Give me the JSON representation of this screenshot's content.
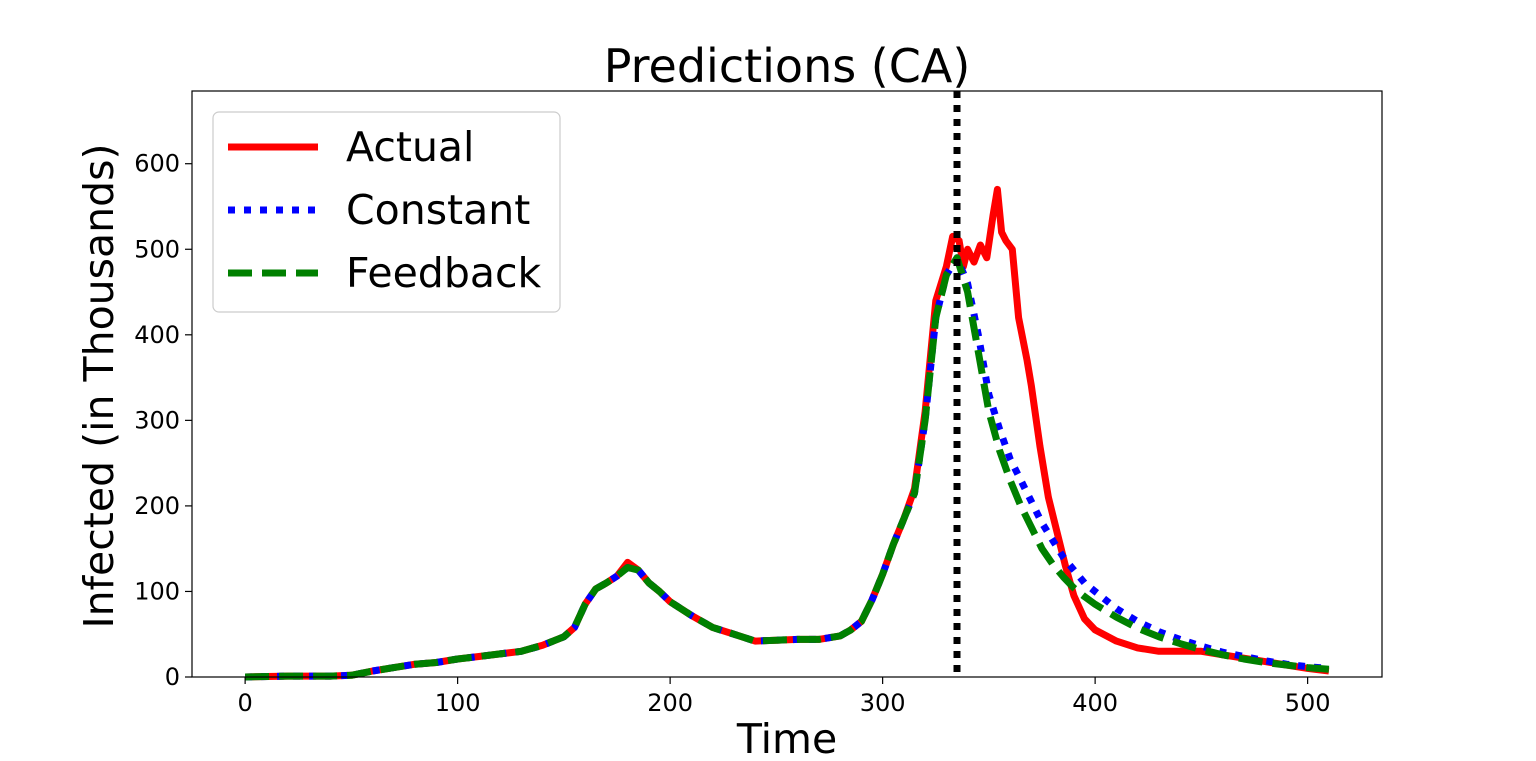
{
  "chart_data": {
    "type": "line",
    "title": "Predictions (CA)",
    "xlabel": "Time",
    "ylabel": "Infected (in Thousands)",
    "xlim": [
      -25,
      535
    ],
    "ylim": [
      0,
      685
    ],
    "xticks": [
      0,
      100,
      200,
      300,
      400,
      500
    ],
    "yticks": [
      0,
      100,
      200,
      300,
      400,
      500,
      600
    ],
    "grid": false,
    "legend_position": "top-left",
    "vline": {
      "x": 335,
      "color": "#000000",
      "style": "dotted"
    },
    "series": [
      {
        "name": "Actual",
        "color": "#ff0000",
        "style": "solid",
        "points": [
          [
            0,
            0
          ],
          [
            20,
            1
          ],
          [
            40,
            1
          ],
          [
            50,
            2
          ],
          [
            60,
            7
          ],
          [
            70,
            11
          ],
          [
            80,
            15
          ],
          [
            90,
            17
          ],
          [
            100,
            21
          ],
          [
            110,
            24
          ],
          [
            120,
            27
          ],
          [
            130,
            30
          ],
          [
            140,
            37
          ],
          [
            150,
            47
          ],
          [
            155,
            58
          ],
          [
            160,
            85
          ],
          [
            165,
            103
          ],
          [
            170,
            110
          ],
          [
            175,
            118
          ],
          [
            180,
            134
          ],
          [
            185,
            125
          ],
          [
            190,
            110
          ],
          [
            195,
            100
          ],
          [
            200,
            88
          ],
          [
            210,
            72
          ],
          [
            220,
            58
          ],
          [
            230,
            50
          ],
          [
            240,
            42
          ],
          [
            250,
            43
          ],
          [
            260,
            44
          ],
          [
            270,
            44
          ],
          [
            280,
            48
          ],
          [
            285,
            55
          ],
          [
            290,
            65
          ],
          [
            295,
            90
          ],
          [
            300,
            120
          ],
          [
            305,
            155
          ],
          [
            310,
            185
          ],
          [
            315,
            220
          ],
          [
            320,
            310
          ],
          [
            325,
            440
          ],
          [
            330,
            480
          ],
          [
            333,
            515
          ],
          [
            336,
            510
          ],
          [
            338,
            480
          ],
          [
            340,
            500
          ],
          [
            343,
            485
          ],
          [
            346,
            505
          ],
          [
            349,
            490
          ],
          [
            352,
            540
          ],
          [
            354,
            570
          ],
          [
            356,
            520
          ],
          [
            358,
            510
          ],
          [
            361,
            500
          ],
          [
            364,
            420
          ],
          [
            368,
            370
          ],
          [
            370,
            340
          ],
          [
            374,
            270
          ],
          [
            378,
            210
          ],
          [
            382,
            170
          ],
          [
            386,
            130
          ],
          [
            390,
            95
          ],
          [
            395,
            68
          ],
          [
            400,
            55
          ],
          [
            410,
            42
          ],
          [
            420,
            34
          ],
          [
            430,
            30
          ],
          [
            440,
            30
          ],
          [
            450,
            30
          ],
          [
            460,
            26
          ],
          [
            470,
            22
          ],
          [
            480,
            18
          ],
          [
            490,
            14
          ],
          [
            500,
            10
          ],
          [
            510,
            7
          ]
        ]
      },
      {
        "name": "Constant",
        "color": "#0000ff",
        "style": "dotted",
        "points": [
          [
            0,
            0
          ],
          [
            20,
            1
          ],
          [
            40,
            1
          ],
          [
            50,
            2
          ],
          [
            60,
            7
          ],
          [
            70,
            11
          ],
          [
            80,
            15
          ],
          [
            90,
            17
          ],
          [
            100,
            21
          ],
          [
            110,
            24
          ],
          [
            120,
            27
          ],
          [
            130,
            30
          ],
          [
            140,
            37
          ],
          [
            150,
            47
          ],
          [
            155,
            58
          ],
          [
            160,
            85
          ],
          [
            165,
            103
          ],
          [
            170,
            110
          ],
          [
            175,
            118
          ],
          [
            180,
            128
          ],
          [
            185,
            125
          ],
          [
            190,
            110
          ],
          [
            195,
            100
          ],
          [
            200,
            88
          ],
          [
            210,
            72
          ],
          [
            220,
            58
          ],
          [
            230,
            50
          ],
          [
            240,
            42
          ],
          [
            250,
            43
          ],
          [
            260,
            44
          ],
          [
            270,
            44
          ],
          [
            280,
            48
          ],
          [
            285,
            55
          ],
          [
            290,
            65
          ],
          [
            295,
            90
          ],
          [
            300,
            120
          ],
          [
            305,
            155
          ],
          [
            310,
            185
          ],
          [
            315,
            215
          ],
          [
            320,
            300
          ],
          [
            325,
            420
          ],
          [
            330,
            470
          ],
          [
            335,
            490
          ],
          [
            340,
            460
          ],
          [
            345,
            400
          ],
          [
            350,
            330
          ],
          [
            355,
            290
          ],
          [
            360,
            255
          ],
          [
            365,
            230
          ],
          [
            370,
            205
          ],
          [
            375,
            180
          ],
          [
            380,
            160
          ],
          [
            385,
            140
          ],
          [
            390,
            125
          ],
          [
            395,
            110
          ],
          [
            400,
            100
          ],
          [
            410,
            80
          ],
          [
            420,
            65
          ],
          [
            430,
            53
          ],
          [
            440,
            44
          ],
          [
            450,
            36
          ],
          [
            460,
            29
          ],
          [
            470,
            24
          ],
          [
            480,
            19
          ],
          [
            490,
            15
          ],
          [
            500,
            12
          ],
          [
            510,
            10
          ]
        ]
      },
      {
        "name": "Feedback",
        "color": "#008000",
        "style": "dashed",
        "points": [
          [
            0,
            0
          ],
          [
            20,
            1
          ],
          [
            40,
            1
          ],
          [
            50,
            2
          ],
          [
            60,
            7
          ],
          [
            70,
            11
          ],
          [
            80,
            15
          ],
          [
            90,
            17
          ],
          [
            100,
            21
          ],
          [
            110,
            24
          ],
          [
            120,
            27
          ],
          [
            130,
            30
          ],
          [
            140,
            37
          ],
          [
            150,
            47
          ],
          [
            155,
            58
          ],
          [
            160,
            85
          ],
          [
            165,
            103
          ],
          [
            170,
            110
          ],
          [
            175,
            118
          ],
          [
            180,
            128
          ],
          [
            185,
            125
          ],
          [
            190,
            110
          ],
          [
            195,
            100
          ],
          [
            200,
            88
          ],
          [
            210,
            72
          ],
          [
            220,
            58
          ],
          [
            230,
            50
          ],
          [
            240,
            42
          ],
          [
            250,
            43
          ],
          [
            260,
            44
          ],
          [
            270,
            44
          ],
          [
            280,
            48
          ],
          [
            285,
            55
          ],
          [
            290,
            65
          ],
          [
            295,
            90
          ],
          [
            300,
            120
          ],
          [
            305,
            155
          ],
          [
            310,
            185
          ],
          [
            315,
            215
          ],
          [
            320,
            300
          ],
          [
            325,
            420
          ],
          [
            330,
            470
          ],
          [
            335,
            490
          ],
          [
            340,
            450
          ],
          [
            345,
            380
          ],
          [
            350,
            310
          ],
          [
            355,
            265
          ],
          [
            360,
            230
          ],
          [
            365,
            200
          ],
          [
            370,
            175
          ],
          [
            375,
            150
          ],
          [
            380,
            132
          ],
          [
            385,
            117
          ],
          [
            390,
            104
          ],
          [
            395,
            94
          ],
          [
            400,
            85
          ],
          [
            410,
            70
          ],
          [
            420,
            57
          ],
          [
            430,
            47
          ],
          [
            440,
            39
          ],
          [
            450,
            32
          ],
          [
            460,
            26
          ],
          [
            470,
            21
          ],
          [
            480,
            17
          ],
          [
            490,
            14
          ],
          [
            500,
            11
          ],
          [
            510,
            9
          ]
        ]
      }
    ]
  }
}
